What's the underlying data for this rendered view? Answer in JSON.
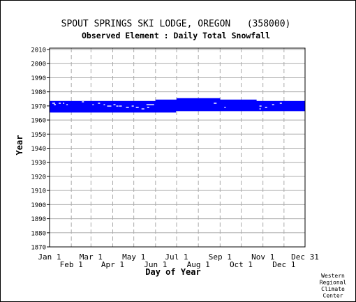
{
  "chart_data": {
    "type": "heatmap",
    "title": "SPOUT SPRINGS SKI LODGE, OREGON   (358000)",
    "subtitle": "Observed Element : Daily Total Snowfall",
    "xlabel": "Day of Year",
    "ylabel": "Year",
    "credit": [
      "Western",
      "Regional",
      "Climate",
      "Center"
    ],
    "ylim": [
      1870,
      2011
    ],
    "xlim": [
      1,
      365
    ],
    "y_ticks": [
      2010,
      2000,
      1990,
      1980,
      1970,
      1960,
      1950,
      1940,
      1930,
      1920,
      1910,
      1900,
      1890,
      1880,
      1870
    ],
    "x_ticks_top": [
      {
        "label": "Jan 1",
        "day": 1
      },
      {
        "label": "Mar 1",
        "day": 60
      },
      {
        "label": "May 1",
        "day": 121
      },
      {
        "label": "Jul 1",
        "day": 182
      },
      {
        "label": "Sep 1",
        "day": 244
      },
      {
        "label": "Nov 1",
        "day": 305
      },
      {
        "label": "Dec 31",
        "day": 365
      }
    ],
    "x_ticks_bottom": [
      {
        "label": "Feb 1",
        "day": 32
      },
      {
        "label": "Apr 1",
        "day": 91
      },
      {
        "label": "Jun 1",
        "day": 152
      },
      {
        "label": "Aug 1",
        "day": 213
      },
      {
        "label": "Oct 1",
        "day": 274
      },
      {
        "label": "Dec 1",
        "day": 335
      }
    ],
    "grid": true,
    "data_color": "#0000ff",
    "records": [
      {
        "year": 1966,
        "start_day": 1,
        "end_day": 181
      },
      {
        "year": 1967,
        "start_day": 1,
        "end_day": 365
      },
      {
        "year": 1968,
        "start_day": 1,
        "end_day": 365
      },
      {
        "year": 1969,
        "start_day": 1,
        "end_day": 365
      },
      {
        "year": 1970,
        "start_day": 1,
        "end_day": 365
      },
      {
        "year": 1971,
        "start_day": 1,
        "end_day": 365
      },
      {
        "year": 1972,
        "start_day": 1,
        "end_day": 365
      },
      {
        "year": 1973,
        "start_day": 1,
        "end_day": 365
      },
      {
        "year": 1974,
        "start_day": 152,
        "end_day": 296
      },
      {
        "year": 1975,
        "start_day": 182,
        "end_day": 244
      }
    ]
  }
}
